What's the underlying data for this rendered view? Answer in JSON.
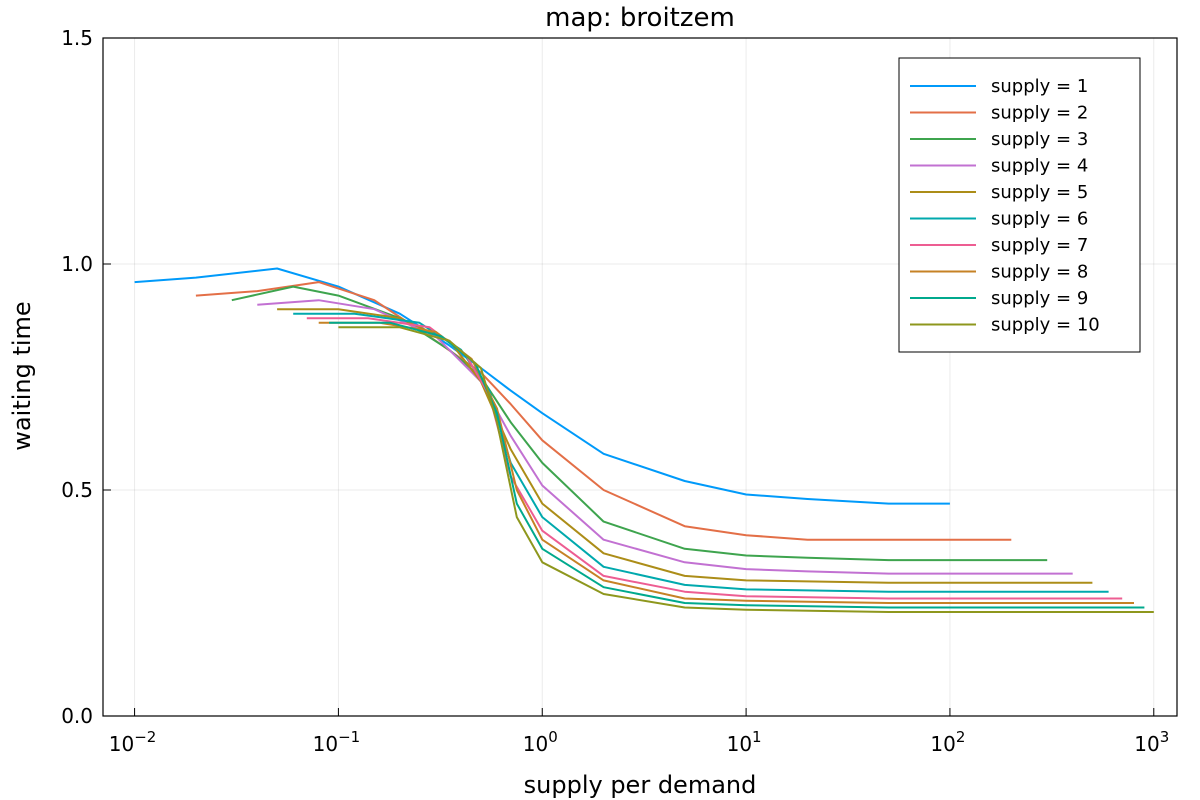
{
  "chart_data": {
    "type": "line",
    "title": "map: broitzem",
    "xlabel": "supply per demand",
    "ylabel": "waiting time",
    "xscale": "log",
    "xlim": [
      0.007,
      1300
    ],
    "ylim": [
      0.0,
      1.5
    ],
    "x_ticks": [
      {
        "value": 0.01,
        "base": "10",
        "exp": "−2"
      },
      {
        "value": 0.1,
        "base": "10",
        "exp": "−1"
      },
      {
        "value": 1,
        "base": "10",
        "exp": "0"
      },
      {
        "value": 10,
        "base": "10",
        "exp": "1"
      },
      {
        "value": 100,
        "base": "10",
        "exp": "2"
      },
      {
        "value": 1000,
        "base": "10",
        "exp": "3"
      }
    ],
    "y_ticks": [
      {
        "value": 0.0,
        "label": "0.0"
      },
      {
        "value": 0.5,
        "label": "0.5"
      },
      {
        "value": 1.0,
        "label": "1.0"
      },
      {
        "value": 1.5,
        "label": "1.5"
      }
    ],
    "grid": true,
    "legend_position": "top-right",
    "series": [
      {
        "name": "supply = 1",
        "color": "#009AFA",
        "x": [
          0.01,
          0.02,
          0.05,
          0.1,
          0.2,
          0.35,
          0.5,
          0.7,
          1.0,
          2.0,
          5.0,
          10.0,
          20.0,
          50.0,
          100.0
        ],
        "y": [
          0.96,
          0.97,
          0.99,
          0.95,
          0.89,
          0.82,
          0.77,
          0.72,
          0.67,
          0.58,
          0.52,
          0.49,
          0.48,
          0.47,
          0.47
        ]
      },
      {
        "name": "supply = 2",
        "color": "#E36F47",
        "x": [
          0.02,
          0.04,
          0.08,
          0.15,
          0.3,
          0.5,
          0.7,
          1.0,
          2.0,
          5.0,
          10.0,
          20.0,
          50.0,
          100.0,
          200.0
        ],
        "y": [
          0.93,
          0.94,
          0.96,
          0.92,
          0.83,
          0.76,
          0.69,
          0.61,
          0.5,
          0.42,
          0.4,
          0.39,
          0.39,
          0.39,
          0.39
        ]
      },
      {
        "name": "supply = 3",
        "color": "#3EA44E",
        "x": [
          0.03,
          0.06,
          0.1,
          0.2,
          0.35,
          0.5,
          0.7,
          1.0,
          2.0,
          5.0,
          10.0,
          20.0,
          50.0,
          100.0,
          300.0
        ],
        "y": [
          0.92,
          0.95,
          0.93,
          0.88,
          0.81,
          0.75,
          0.65,
          0.56,
          0.43,
          0.37,
          0.355,
          0.35,
          0.345,
          0.345,
          0.345
        ]
      },
      {
        "name": "supply = 4",
        "color": "#C271D2",
        "x": [
          0.04,
          0.08,
          0.15,
          0.3,
          0.5,
          0.7,
          1.0,
          2.0,
          5.0,
          10.0,
          20.0,
          50.0,
          100.0,
          400.0
        ],
        "y": [
          0.91,
          0.92,
          0.9,
          0.84,
          0.74,
          0.62,
          0.51,
          0.39,
          0.34,
          0.325,
          0.32,
          0.315,
          0.315,
          0.315
        ]
      },
      {
        "name": "supply = 5",
        "color": "#AC8D18",
        "x": [
          0.05,
          0.1,
          0.2,
          0.35,
          0.5,
          0.7,
          1.0,
          2.0,
          5.0,
          10.0,
          50.0,
          100.0,
          500.0
        ],
        "y": [
          0.9,
          0.9,
          0.88,
          0.83,
          0.74,
          0.59,
          0.47,
          0.36,
          0.31,
          0.3,
          0.295,
          0.295,
          0.295
        ]
      },
      {
        "name": "supply = 6",
        "color": "#00A9AD",
        "x": [
          0.06,
          0.12,
          0.25,
          0.4,
          0.55,
          0.7,
          1.0,
          2.0,
          5.0,
          10.0,
          50.0,
          100.0,
          600.0
        ],
        "y": [
          0.89,
          0.89,
          0.87,
          0.81,
          0.72,
          0.56,
          0.44,
          0.33,
          0.29,
          0.28,
          0.275,
          0.275,
          0.275
        ]
      },
      {
        "name": "supply = 7",
        "color": "#ED5D92",
        "x": [
          0.07,
          0.14,
          0.28,
          0.42,
          0.55,
          0.7,
          1.0,
          2.0,
          5.0,
          10.0,
          50.0,
          100.0,
          700.0
        ],
        "y": [
          0.88,
          0.88,
          0.86,
          0.8,
          0.71,
          0.53,
          0.41,
          0.31,
          0.275,
          0.265,
          0.26,
          0.26,
          0.26
        ]
      },
      {
        "name": "supply = 8",
        "color": "#C68225",
        "x": [
          0.08,
          0.16,
          0.3,
          0.45,
          0.6,
          0.75,
          1.0,
          2.0,
          5.0,
          10.0,
          50.0,
          100.0,
          800.0
        ],
        "y": [
          0.87,
          0.87,
          0.85,
          0.79,
          0.68,
          0.5,
          0.39,
          0.3,
          0.26,
          0.255,
          0.25,
          0.25,
          0.25
        ]
      },
      {
        "name": "supply = 9",
        "color": "#00A98D",
        "x": [
          0.09,
          0.18,
          0.32,
          0.47,
          0.6,
          0.75,
          1.0,
          2.0,
          5.0,
          10.0,
          50.0,
          100.0,
          900.0
        ],
        "y": [
          0.87,
          0.87,
          0.84,
          0.78,
          0.67,
          0.47,
          0.37,
          0.285,
          0.25,
          0.245,
          0.24,
          0.24,
          0.24
        ]
      },
      {
        "name": "supply = 10",
        "color": "#8E971D",
        "x": [
          0.1,
          0.2,
          0.35,
          0.5,
          0.6,
          0.75,
          1.0,
          2.0,
          5.0,
          10.0,
          50.0,
          100.0,
          1000.0
        ],
        "y": [
          0.86,
          0.86,
          0.83,
          0.77,
          0.65,
          0.44,
          0.34,
          0.27,
          0.24,
          0.235,
          0.23,
          0.23,
          0.23
        ]
      }
    ]
  }
}
